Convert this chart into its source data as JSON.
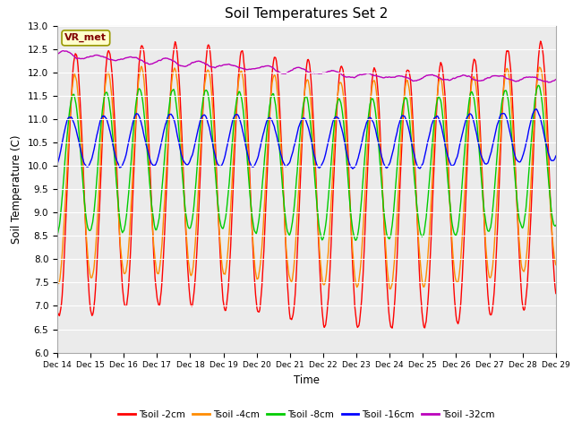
{
  "title": "Soil Temperatures Set 2",
  "xlabel": "Time",
  "ylabel": "Soil Temperature (C)",
  "ylim": [
    6.0,
    13.0
  ],
  "yticks": [
    6.0,
    6.5,
    7.0,
    7.5,
    8.0,
    8.5,
    9.0,
    9.5,
    10.0,
    10.5,
    11.0,
    11.5,
    12.0,
    12.5,
    13.0
  ],
  "xtick_labels": [
    "Dec 14",
    "Dec 15",
    "Dec 16",
    "Dec 17",
    "Dec 18",
    "Dec 19",
    "Dec 20",
    "Dec 21",
    "Dec 22",
    "Dec 23",
    "Dec 24",
    "Dec 25",
    "Dec 26",
    "Dec 27",
    "Dec 28",
    "Dec 29"
  ],
  "colors": {
    "Tsoil -2cm": "#ff0000",
    "Tsoil -4cm": "#ff8c00",
    "Tsoil -8cm": "#00cc00",
    "Tsoil -16cm": "#0000ff",
    "Tsoil -32cm": "#bb00bb"
  },
  "fig_facecolor": "#ffffff",
  "plot_bg_color": "#ebebeb",
  "grid_color": "#ffffff",
  "annotation_text": "VR_met",
  "annotation_box_color": "#ffffcc",
  "annotation_border_color": "#999900",
  "linewidth": 1.0
}
